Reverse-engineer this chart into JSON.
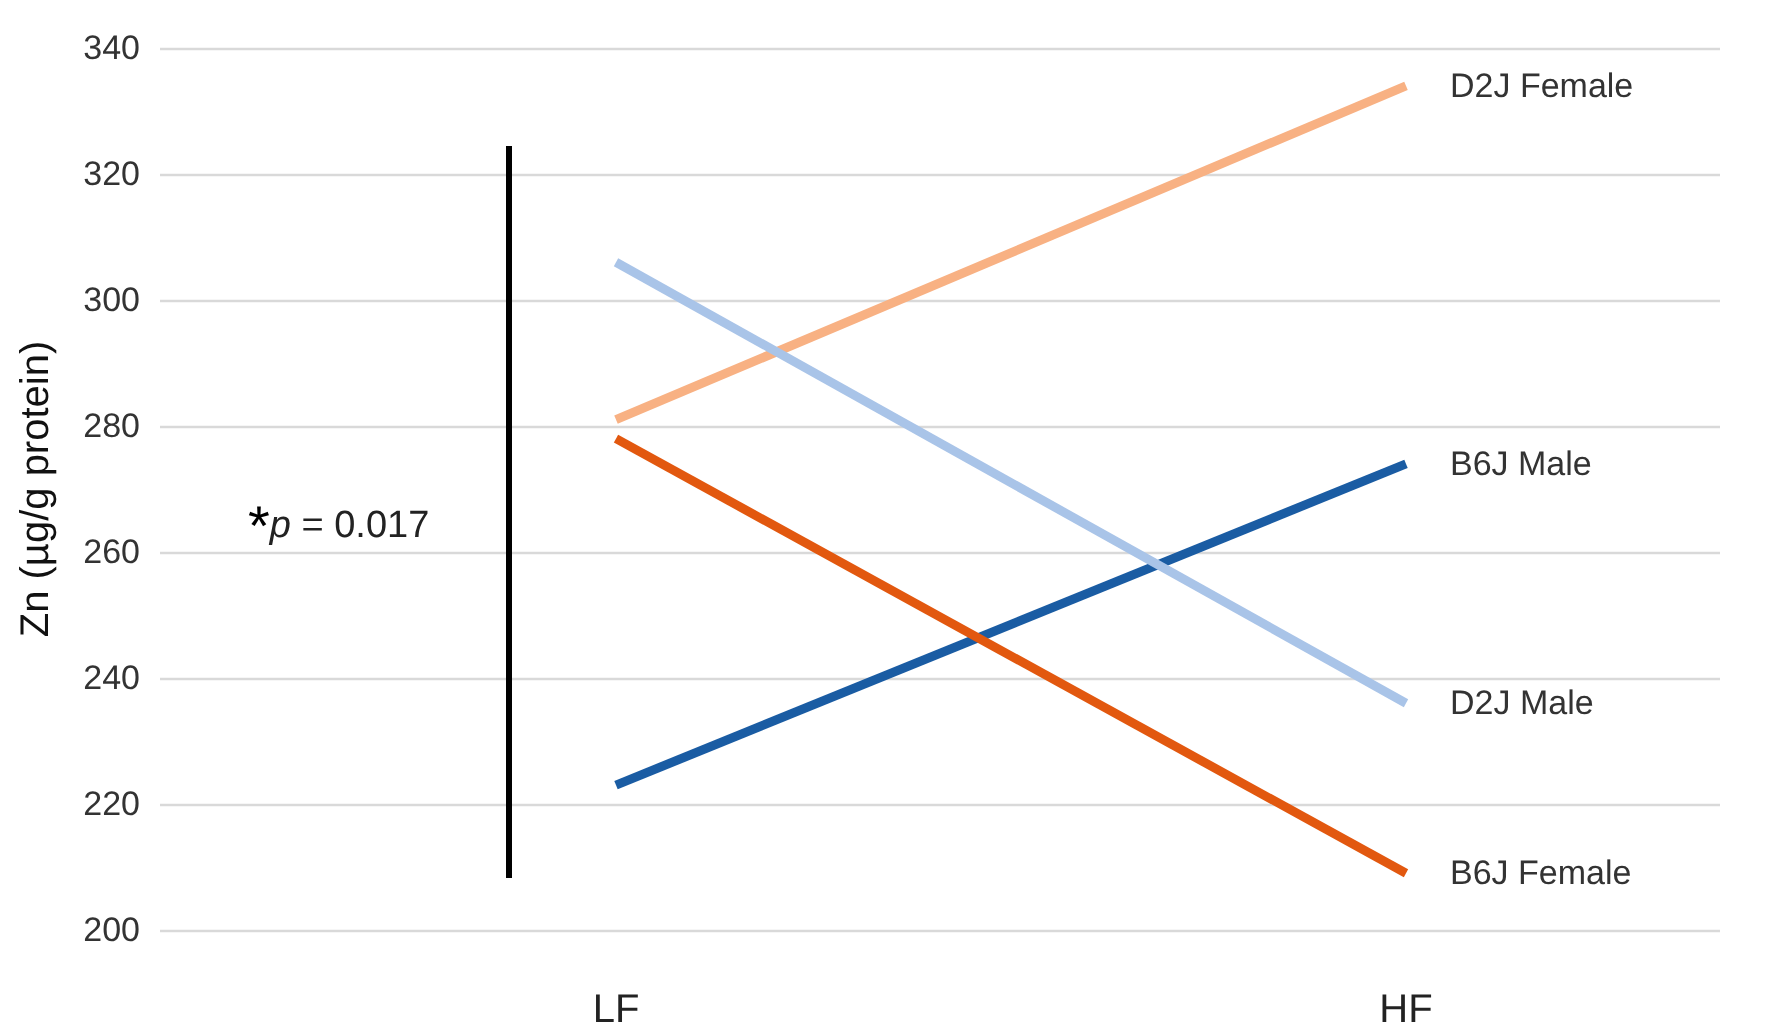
{
  "chart_data": {
    "type": "line",
    "ylabel": "Zn (µg/g protein)",
    "categories": [
      "LF",
      "HF"
    ],
    "ylim": [
      200,
      340
    ],
    "yticks": [
      200,
      220,
      240,
      260,
      280,
      300,
      320,
      340
    ],
    "grid": "y",
    "legend": false,
    "marker": "none",
    "line_style": "solid",
    "annotations": [
      "*p = 0.017"
    ],
    "series": [
      {
        "name": "D2J Female",
        "color": "#f8b183",
        "values": [
          281,
          334
        ]
      },
      {
        "name": "B6J Male",
        "color": "#1a5ca3",
        "values": [
          223,
          274
        ]
      },
      {
        "name": "D2J Male",
        "color": "#a9c4e8",
        "values": [
          306,
          236
        ]
      },
      {
        "name": "B6J Female",
        "color": "#e2580f",
        "values": [
          278,
          209
        ]
      }
    ]
  }
}
